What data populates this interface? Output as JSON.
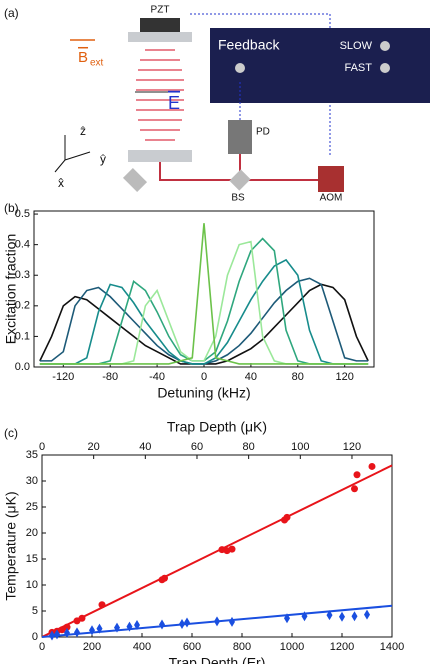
{
  "panel_a": {
    "label": "(a)",
    "pzt": "PZT",
    "feedback": "Feedback",
    "slow": "SLOW",
    "fast": "FAST",
    "pd": "PD",
    "bs": "BS",
    "aom": "AOM",
    "b_field": "B",
    "b_sub": "ext",
    "e_field": "E",
    "z_axis": "ẑ",
    "y_axis": "ŷ",
    "x_axis": "x̂"
  },
  "chart_data": [
    {
      "type": "line",
      "panel": "(b)",
      "xlabel": "Detuning (kHz)",
      "ylabel": "Excitation fraction",
      "x": [
        -140,
        -130,
        -120,
        -110,
        -100,
        -90,
        -80,
        -70,
        -60,
        -50,
        -40,
        -30,
        -20,
        -10,
        0,
        10,
        20,
        30,
        40,
        50,
        60,
        70,
        80,
        90,
        100,
        110,
        120,
        130,
        140
      ],
      "series": [
        {
          "color": "#111111",
          "values": [
            0.02,
            0.1,
            0.2,
            0.23,
            0.22,
            0.19,
            0.16,
            0.13,
            0.1,
            0.07,
            0.05,
            0.03,
            0.01,
            0.01,
            0.01,
            0.01,
            0.02,
            0.04,
            0.06,
            0.09,
            0.13,
            0.17,
            0.21,
            0.25,
            0.27,
            0.26,
            0.22,
            0.1,
            0.02
          ]
        },
        {
          "color": "#1d5a78",
          "values": [
            0.02,
            0.02,
            0.05,
            0.2,
            0.25,
            0.26,
            0.23,
            0.19,
            0.15,
            0.11,
            0.07,
            0.04,
            0.02,
            0.01,
            0.01,
            0.02,
            0.04,
            0.07,
            0.11,
            0.16,
            0.21,
            0.25,
            0.28,
            0.29,
            0.27,
            0.15,
            0.03,
            0.02,
            0.02
          ]
        },
        {
          "color": "#178c8c",
          "values": [
            0.01,
            0.01,
            0.01,
            0.01,
            0.03,
            0.18,
            0.27,
            0.26,
            0.21,
            0.15,
            0.1,
            0.05,
            0.02,
            0.01,
            0.01,
            0.03,
            0.08,
            0.15,
            0.22,
            0.28,
            0.33,
            0.35,
            0.3,
            0.12,
            0.02,
            0.01,
            0.01,
            0.01,
            0.01
          ]
        },
        {
          "color": "#2fa77e",
          "values": [
            0.01,
            0.01,
            0.01,
            0.01,
            0.01,
            0.01,
            0.02,
            0.15,
            0.28,
            0.25,
            0.18,
            0.1,
            0.04,
            0.02,
            0.02,
            0.05,
            0.15,
            0.28,
            0.38,
            0.42,
            0.38,
            0.12,
            0.02,
            0.01,
            0.01,
            0.01,
            0.01,
            0.01,
            0.01
          ]
        },
        {
          "color": "#9be89a",
          "values": [
            0.01,
            0.01,
            0.01,
            0.01,
            0.01,
            0.01,
            0.01,
            0.01,
            0.02,
            0.2,
            0.25,
            0.15,
            0.05,
            0.02,
            0.02,
            0.1,
            0.3,
            0.4,
            0.41,
            0.1,
            0.02,
            0.01,
            0.01,
            0.01,
            0.01,
            0.01,
            0.01,
            0.01,
            0.01
          ]
        },
        {
          "color": "#6cc24a",
          "values": [
            0.01,
            0.01,
            0.01,
            0.01,
            0.01,
            0.01,
            0.01,
            0.01,
            0.01,
            0.01,
            0.01,
            0.01,
            0.02,
            0.03,
            0.47,
            0.03,
            0.02,
            0.01,
            0.01,
            0.01,
            0.01,
            0.01,
            0.01,
            0.01,
            0.01,
            0.01,
            0.01,
            0.01,
            0.01
          ]
        }
      ],
      "xlim": [
        -145,
        145
      ],
      "xticks": [
        -120,
        -80,
        -40,
        0,
        40,
        80,
        120
      ],
      "ylim": [
        0,
        0.51
      ],
      "yticks": [
        {
          "value": 0,
          "label": "0.0"
        },
        0.1,
        0.2,
        0.3,
        0.4,
        0.5
      ]
    },
    {
      "type": "scatter",
      "panel": "(c)",
      "xlabel": "Trap Depth (Er)",
      "x2label": "Trap Depth (μK)",
      "ylabel": "Temperature (μK)",
      "series": [
        {
          "color": "#e8141a",
          "marker": "circle",
          "x": [
            40,
            60,
            80,
            100,
            140,
            160,
            240,
            480,
            490,
            720,
            740,
            760,
            970,
            980,
            1250,
            1260,
            1320
          ],
          "values": [
            0.9,
            1.1,
            1.4,
            1.9,
            3.1,
            3.6,
            6.2,
            11,
            11.3,
            16.8,
            16.6,
            16.9,
            22.5,
            23,
            28.5,
            31.2,
            32.8
          ],
          "fit_x": [
            0,
            1400
          ],
          "fit_values": [
            0,
            33
          ]
        },
        {
          "color": "#1a4fe0",
          "marker": "diamond",
          "x": [
            40,
            60,
            100,
            140,
            200,
            230,
            300,
            350,
            380,
            480,
            560,
            580,
            700,
            760,
            980,
            1050,
            1150,
            1200,
            1250,
            1300
          ],
          "values": [
            0.3,
            0.5,
            0.8,
            0.9,
            1.3,
            1.6,
            1.8,
            2.0,
            2.3,
            2.4,
            2.5,
            2.8,
            3.0,
            2.9,
            3.6,
            4.0,
            4.2,
            3.9,
            4.0,
            4.3
          ],
          "fit_x": [
            0,
            1400
          ],
          "fit_values": [
            0,
            6
          ]
        }
      ],
      "xlim": [
        0,
        1400
      ],
      "xticks": [
        0,
        200,
        400,
        600,
        800,
        1000,
        1200,
        1400
      ],
      "x2lim": [
        0,
        135.5
      ],
      "x2ticks": [
        0,
        20,
        40,
        60,
        80,
        100,
        120
      ],
      "ylim": [
        0,
        35
      ],
      "yticks": [
        0,
        5,
        10,
        15,
        20,
        25,
        30,
        35
      ]
    }
  ]
}
